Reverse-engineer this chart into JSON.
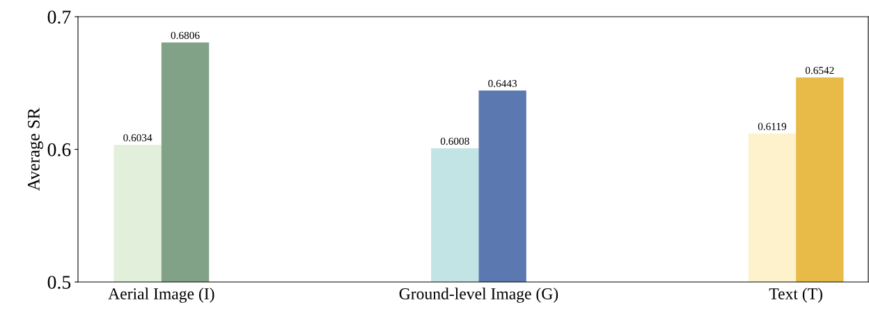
{
  "chart_data": {
    "type": "bar",
    "ylabel": "Average SR",
    "categories": [
      "Aerial Image (I)",
      "Ground-level Image (G)",
      "Text (T)"
    ],
    "series": [
      {
        "colors": [
          "#e2efda",
          "#c3e4e4",
          "#fdf2cc"
        ],
        "values": [
          0.6034,
          0.6008,
          0.6119
        ]
      },
      {
        "colors": [
          "#82a287",
          "#5b79b0",
          "#e8bb48"
        ],
        "values": [
          0.6806,
          0.6443,
          0.6542
        ]
      }
    ],
    "ylim": [
      0.5,
      0.7
    ],
    "yticks": [
      0.5,
      0.6,
      0.7
    ],
    "data_labels": true,
    "grid": false,
    "legend": false
  }
}
